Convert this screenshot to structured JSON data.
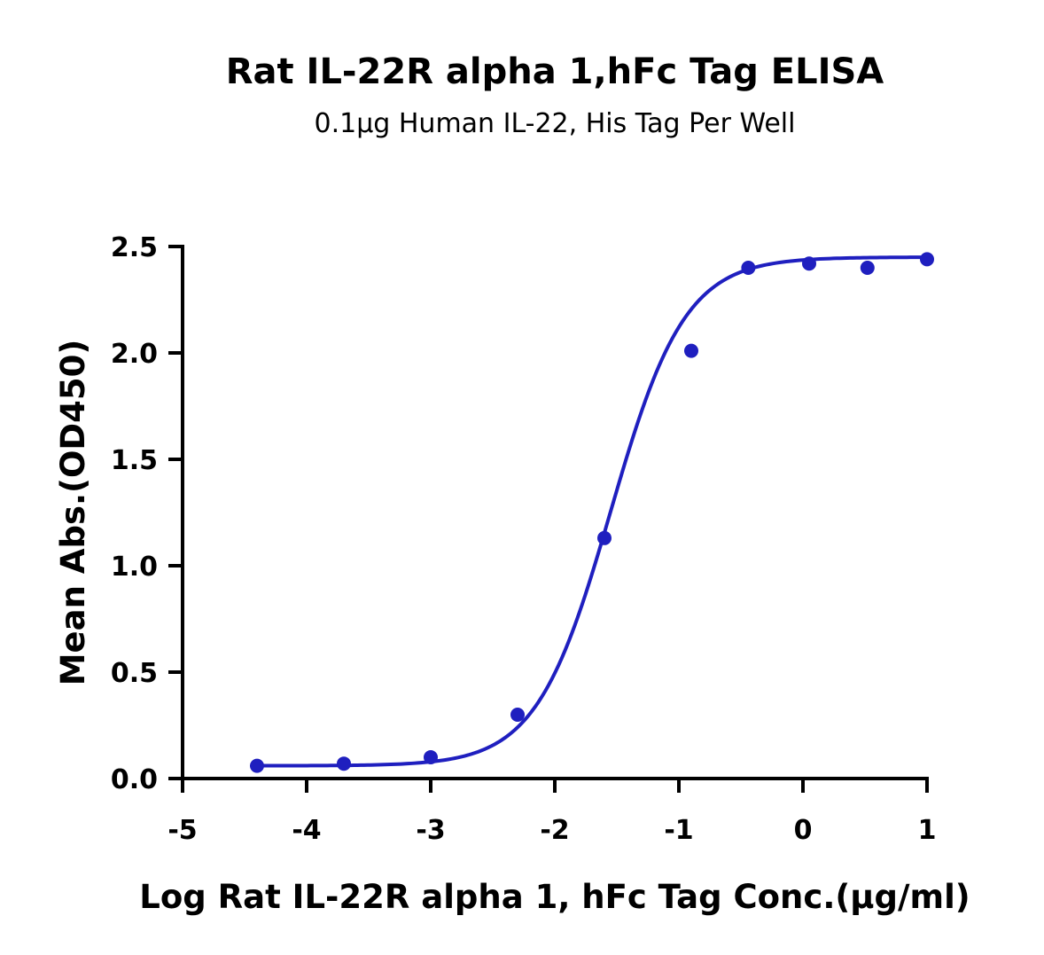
{
  "chart_data": {
    "type": "scatter",
    "title": "Rat IL-22R alpha 1,hFc Tag ELISA",
    "subtitle": "0.1µg Human IL-22, His Tag Per Well",
    "xlabel": "Log Rat IL-22R alpha 1, hFc Tag Conc.(µg/ml)",
    "ylabel": "Mean Abs.(OD450)",
    "xlim": [
      -5,
      1
    ],
    "ylim": [
      0,
      2.5
    ],
    "x_ticks": [
      -5,
      -4,
      -3,
      -2,
      -1,
      0,
      1
    ],
    "x_tick_labels": [
      "-5",
      "-4",
      "-3",
      "-2",
      "-1",
      "0",
      "1"
    ],
    "y_ticks": [
      0,
      0.5,
      1.0,
      1.5,
      2.0,
      2.5
    ],
    "y_tick_labels": [
      "0.0",
      "0.5",
      "1.0",
      "1.5",
      "2.0",
      "2.5"
    ],
    "grid": false,
    "legend": "none",
    "color": "#1f1fbf",
    "points": {
      "x": [
        -4.4,
        -3.7,
        -3.0,
        -2.3,
        -1.6,
        -0.9,
        -0.44,
        0.05,
        0.52,
        1.0
      ],
      "y": [
        0.06,
        0.07,
        0.1,
        0.3,
        1.13,
        2.01,
        2.4,
        2.42,
        2.4,
        2.44
      ]
    },
    "fit_curve": {
      "model": "4PL",
      "bottom": 0.06,
      "top": 2.45,
      "log_ec50": -1.55,
      "hill_slope": 1.45
    }
  }
}
